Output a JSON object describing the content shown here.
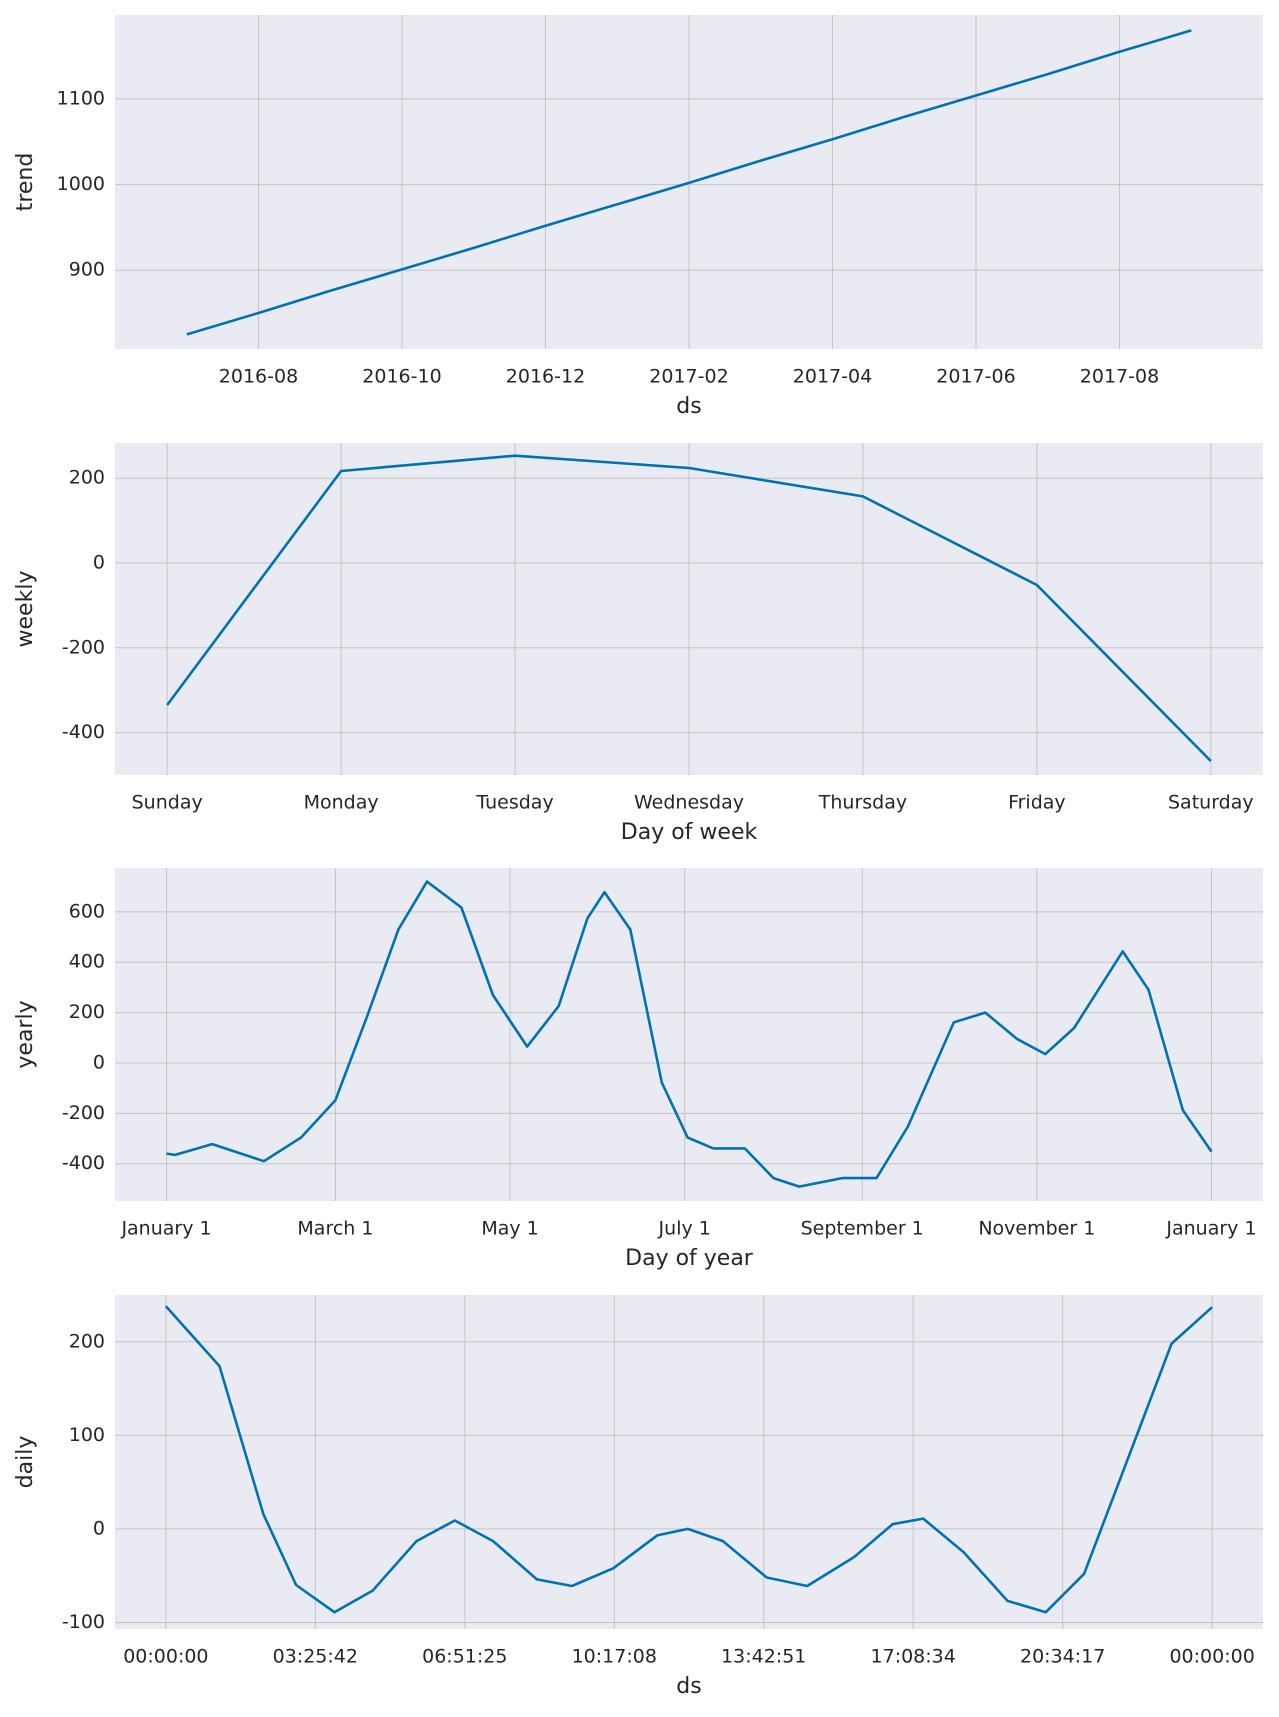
{
  "chart_data": [
    {
      "type": "line",
      "ylabel": "trend",
      "xlabel": "ds",
      "color": "#0072b2",
      "grid": true,
      "x": [
        "2016-07",
        "2016-08",
        "2016-09",
        "2016-10",
        "2016-11",
        "2016-12",
        "2017-01",
        "2017-02",
        "2017-03",
        "2017-04",
        "2017-05",
        "2017-06",
        "2017-07",
        "2017-08",
        "2017-09"
      ],
      "values": [
        825,
        850,
        876,
        901,
        926,
        952,
        977,
        1002,
        1028,
        1053,
        1079,
        1104,
        1129,
        1155,
        1180
      ],
      "xlim": [
        "2016-06",
        "2017-10"
      ],
      "xticks": [
        "2016-08",
        "2016-10",
        "2016-12",
        "2017-02",
        "2017-04",
        "2017-06",
        "2017-08"
      ],
      "ylim": [
        808,
        1198
      ],
      "yticks": [
        900,
        1000,
        1100
      ]
    },
    {
      "type": "line",
      "ylabel": "weekly",
      "xlabel": "Day of week",
      "color": "#0072b2",
      "grid": true,
      "categories": [
        "Sunday",
        "Monday",
        "Tuesday",
        "Wednesday",
        "Thursday",
        "Friday",
        "Saturday"
      ],
      "values": [
        -335,
        217,
        253,
        224,
        157,
        -52,
        -467
      ],
      "ylim": [
        -500,
        283
      ],
      "yticks": [
        -400,
        -200,
        0,
        200
      ]
    },
    {
      "type": "line",
      "ylabel": "yearly",
      "xlabel": "Day of year",
      "color": "#0072b2",
      "grid": true,
      "x": [
        0,
        3,
        16,
        34,
        47,
        59,
        70,
        81,
        91,
        103,
        114,
        126,
        137,
        147,
        153,
        162,
        173,
        182,
        191,
        202,
        212,
        221,
        236,
        248,
        259,
        275,
        286,
        297,
        307,
        317,
        334,
        343,
        355,
        365
      ],
      "values": [
        -360,
        -365,
        -322,
        -390,
        -296,
        -148,
        183,
        530,
        720,
        617,
        270,
        65,
        226,
        574,
        678,
        530,
        -78,
        -296,
        -339,
        -339,
        -457,
        -491,
        -457,
        -457,
        -252,
        161,
        200,
        96,
        35,
        139,
        443,
        291,
        -187,
        -352
      ],
      "xlim": [
        -18,
        383
      ],
      "xticks": [
        {
          "value": 0,
          "label": "January 1"
        },
        {
          "value": 59,
          "label": "March 1"
        },
        {
          "value": 120,
          "label": "May 1"
        },
        {
          "value": 181,
          "label": "July 1"
        },
        {
          "value": 243,
          "label": "September 1"
        },
        {
          "value": 304,
          "label": "November 1"
        },
        {
          "value": 365,
          "label": "January 1"
        }
      ],
      "ylim": [
        -548,
        774
      ],
      "yticks": [
        -400,
        -200,
        0,
        200,
        400,
        600
      ]
    },
    {
      "type": "line",
      "ylabel": "daily",
      "xlabel": "ds",
      "color": "#0072b2",
      "grid": true,
      "x": [
        0,
        4429,
        8044,
        10755,
        13918,
        17081,
        20696,
        23859,
        27022,
        30637,
        33529,
        36963,
        40578,
        43108,
        46000,
        49615,
        52959,
        56845,
        60009,
        62539,
        65883,
        69498,
        72662,
        75825,
        79440,
        83055,
        86400
      ],
      "values": [
        238,
        174,
        16,
        -60,
        -89,
        -66,
        -13,
        9,
        -13,
        -54,
        -61,
        -42,
        -7,
        0,
        -13,
        -52,
        -61,
        -30,
        5,
        11,
        -25,
        -77,
        -89,
        -48,
        75,
        198,
        237
      ],
      "xlim": [
        -4200,
        90600
      ],
      "xticks": [
        {
          "value": 0,
          "label": "00:00:00"
        },
        {
          "value": 12342,
          "label": "03:25:42"
        },
        {
          "value": 24685,
          "label": "06:51:25"
        },
        {
          "value": 37028,
          "label": "10:17:08"
        },
        {
          "value": 49371,
          "label": "13:42:51"
        },
        {
          "value": 61714,
          "label": "17:08:34"
        },
        {
          "value": 74057,
          "label": "20:34:17"
        },
        {
          "value": 86400,
          "label": "00:00:00"
        }
      ],
      "ylim": [
        -107,
        250
      ],
      "yticks": [
        -100,
        0,
        100,
        200
      ]
    }
  ]
}
